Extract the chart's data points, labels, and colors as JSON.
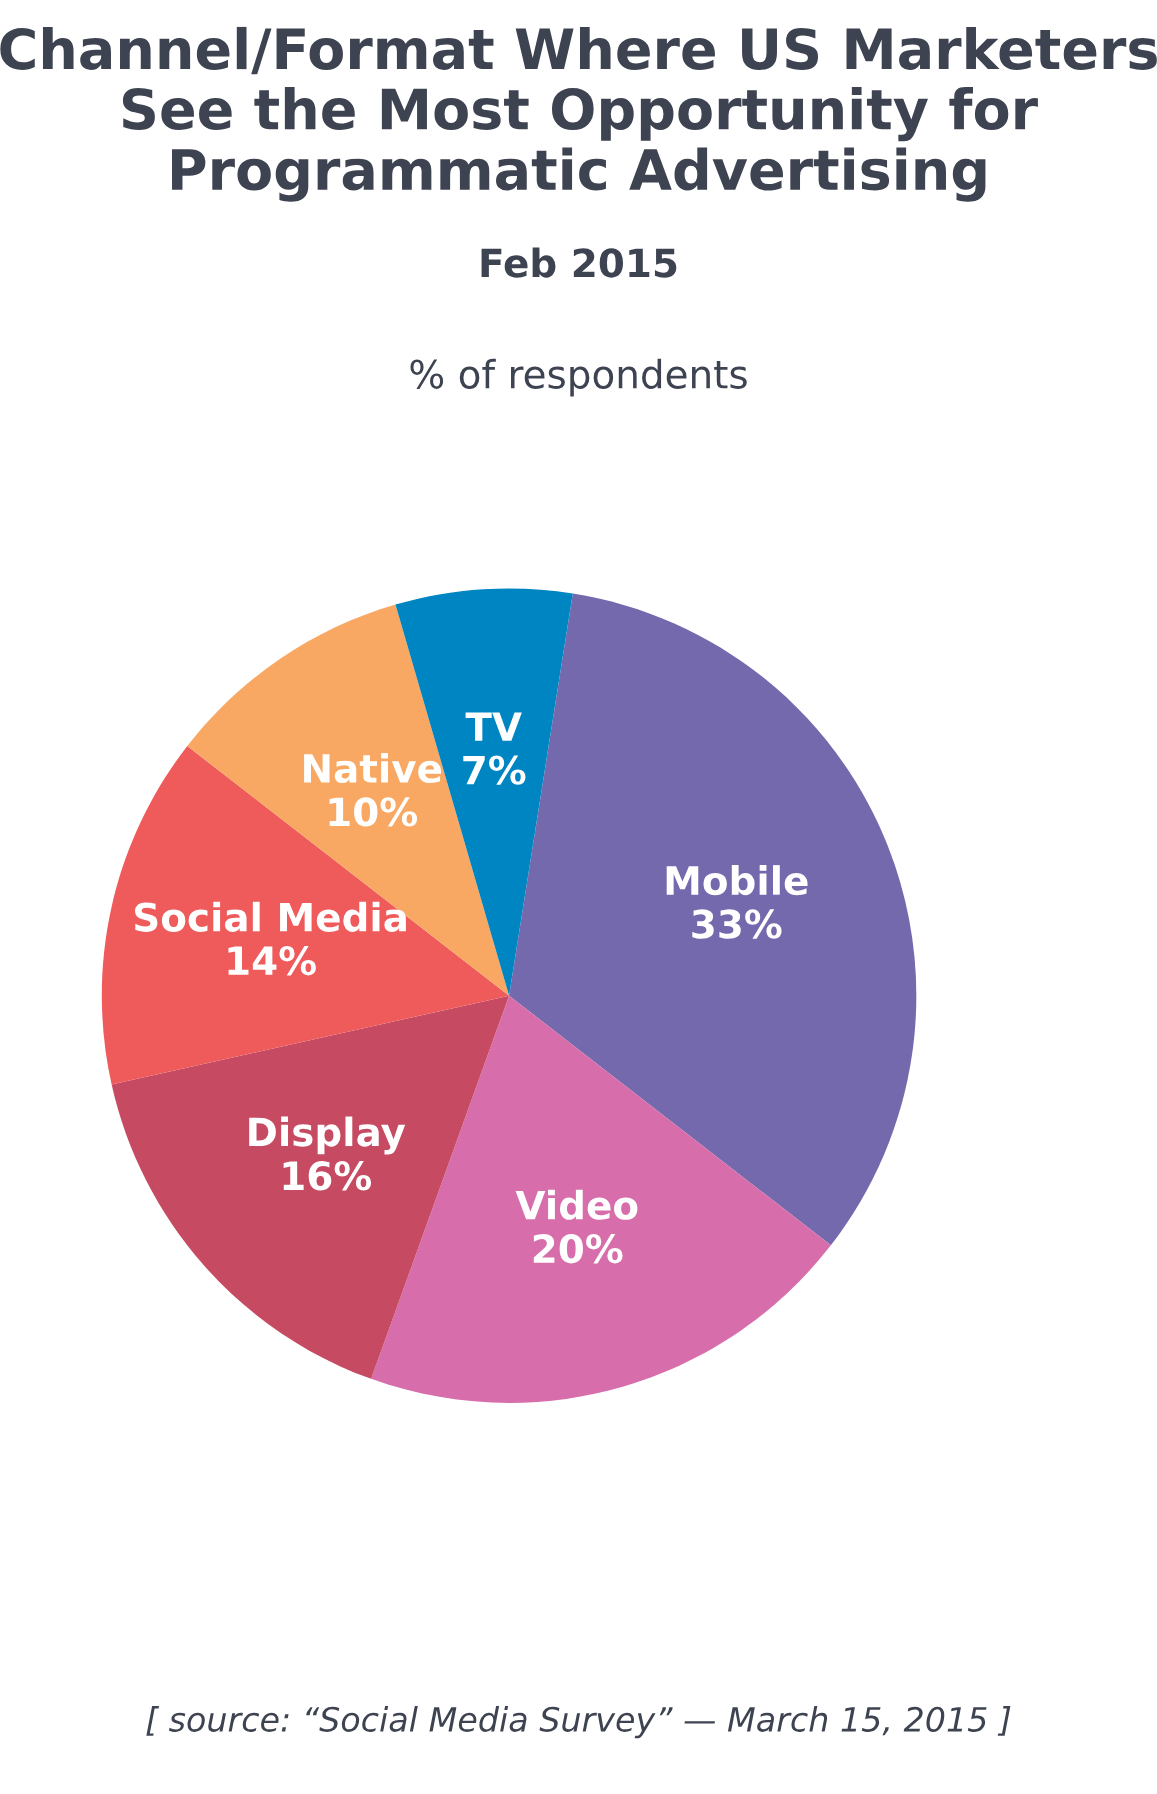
{
  "chart_data": {
    "type": "pie",
    "title": "Channel/Format Where US Marketers\nSee the Most Opportunity for\nProgrammatic Advertising",
    "subtitle": "Feb 2015",
    "annotations": [
      "% of respondents",
      "[ source: “Social Media Survey” — March 15, 2015 ]"
    ],
    "categories": [
      "Mobile",
      "Video",
      "Display",
      "Social Media",
      "Native",
      "TV"
    ],
    "values": [
      33,
      20,
      16,
      14,
      10,
      7
    ],
    "colors": [
      "#7469ac",
      "#d76eab",
      "#c64a62",
      "#ef5b5b",
      "#f8a863",
      "#0085c3"
    ],
    "value_labels": [
      "33%",
      "20%",
      "16%",
      "14%",
      "10%",
      "7%"
    ]
  }
}
